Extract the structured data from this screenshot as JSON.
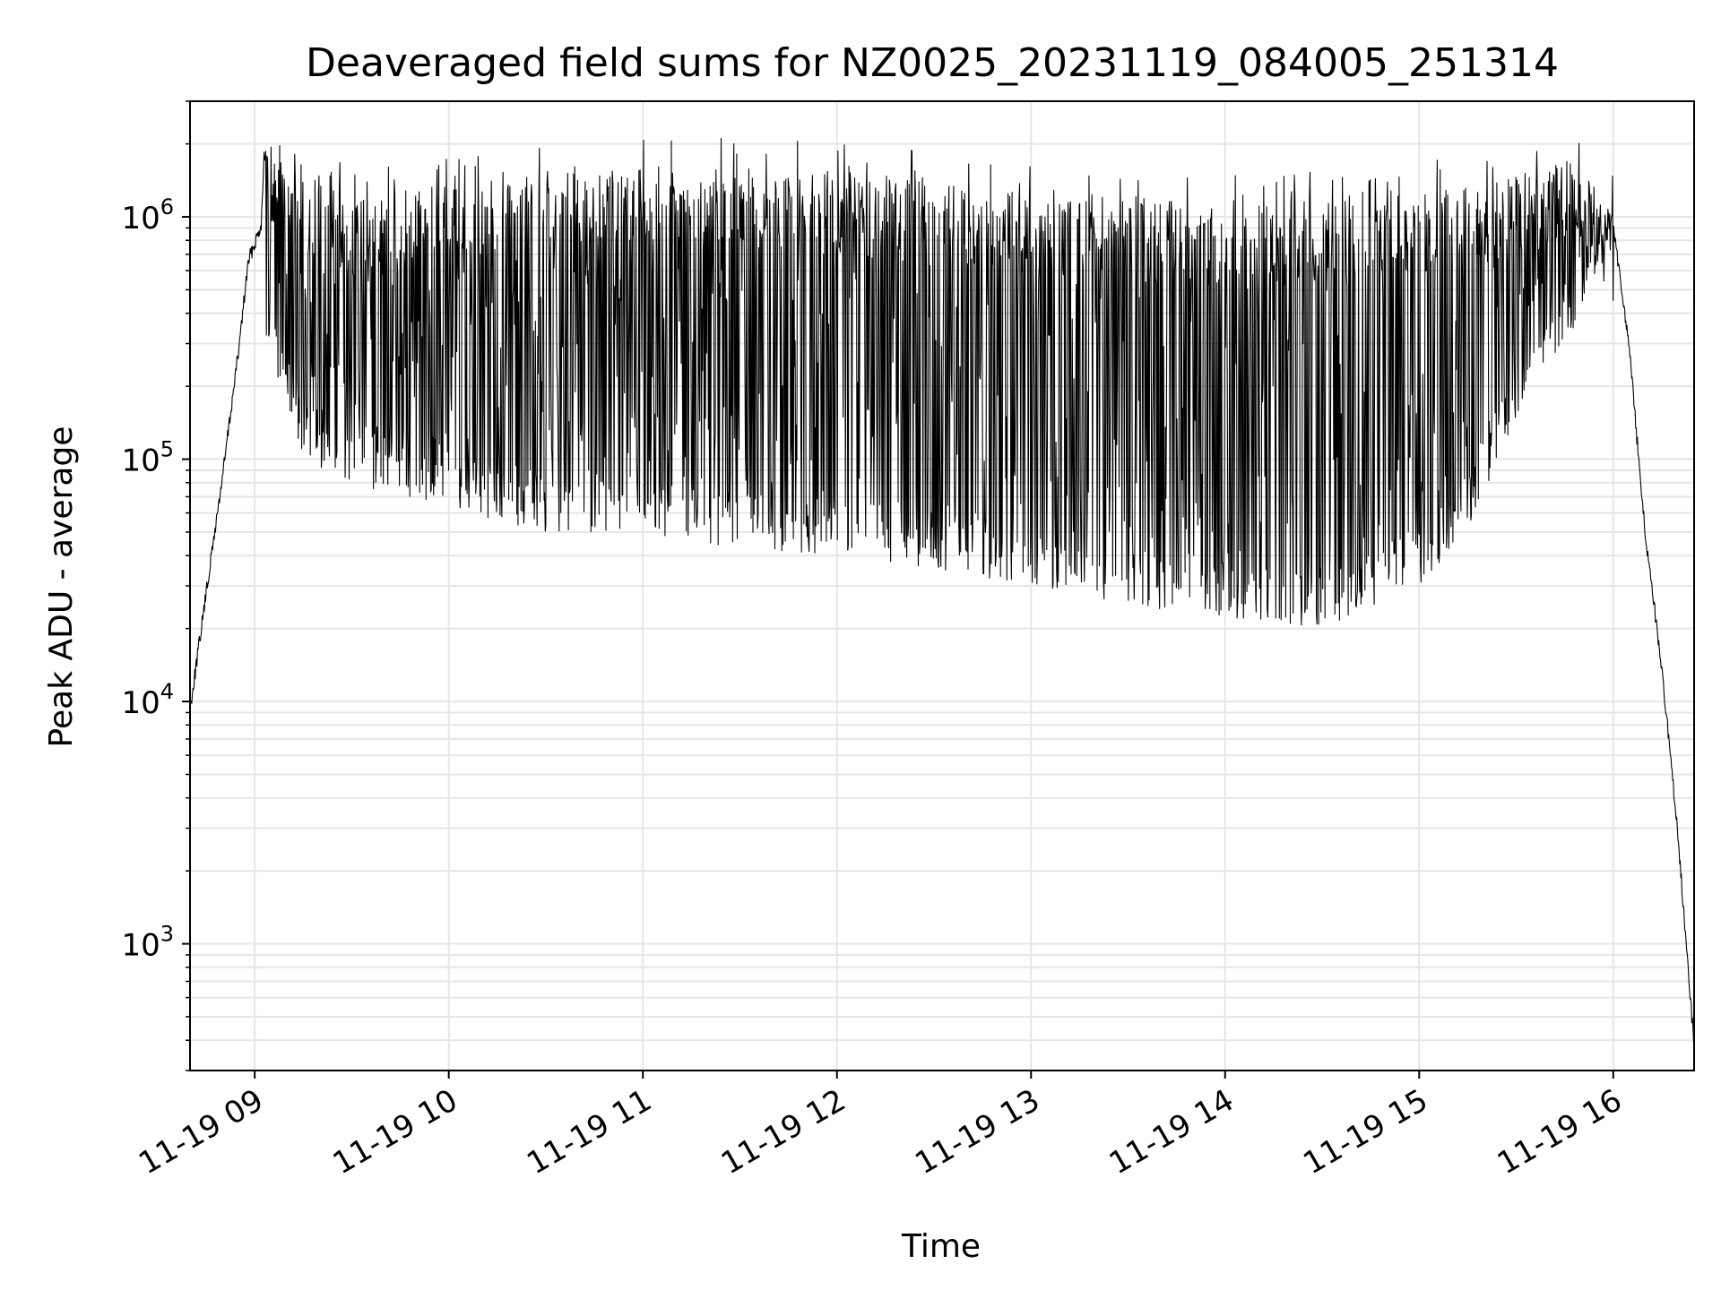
{
  "chart_data": {
    "type": "line",
    "title": "Deaveraged field sums for NZ0025_20231119_084005_251314",
    "xlabel": "Time",
    "ylabel": "Peak ADU - average",
    "yscale": "log",
    "ylim": [
      300,
      3000000
    ],
    "xlim": [
      "2023-11-19 08:40",
      "2023-11-19 16:25"
    ],
    "grid": true,
    "line_color": "#000000",
    "grid_color": "#e6e6e6",
    "x_ticks": [
      {
        "label": "11-19 09",
        "time": "2023-11-19 09:00"
      },
      {
        "label": "11-19 10",
        "time": "2023-11-19 10:00"
      },
      {
        "label": "11-19 11",
        "time": "2023-11-19 11:00"
      },
      {
        "label": "11-19 12",
        "time": "2023-11-19 12:00"
      },
      {
        "label": "11-19 13",
        "time": "2023-11-19 13:00"
      },
      {
        "label": "11-19 14",
        "time": "2023-11-19 14:00"
      },
      {
        "label": "11-19 15",
        "time": "2023-11-19 15:00"
      },
      {
        "label": "11-19 16",
        "time": "2023-11-19 16:00"
      }
    ],
    "y_ticks": [
      {
        "label_base": "10",
        "label_exp": "3",
        "value": 1000
      },
      {
        "label_base": "10",
        "label_exp": "4",
        "value": 10000
      },
      {
        "label_base": "10",
        "label_exp": "5",
        "value": 100000
      },
      {
        "label_base": "10",
        "label_exp": "6",
        "value": 1000000
      }
    ],
    "series": [
      {
        "upper_envelope": [
          [
            "2023-11-19 08:40",
            10000
          ],
          [
            "2023-11-19 08:45",
            30000
          ],
          [
            "2023-11-19 08:50",
            90000
          ],
          [
            "2023-11-19 08:55",
            300000
          ],
          [
            "2023-11-19 08:58",
            700000
          ],
          [
            "2023-11-19 09:02",
            1000000
          ],
          [
            "2023-11-19 09:03",
            2100000
          ],
          [
            "2023-11-19 09:30",
            1200000
          ],
          [
            "2023-11-19 10:00",
            1400000
          ],
          [
            "2023-11-19 10:30",
            1500000
          ],
          [
            "2023-11-19 11:00",
            1600000
          ],
          [
            "2023-11-19 11:30",
            1650000
          ],
          [
            "2023-11-19 12:00",
            1550000
          ],
          [
            "2023-11-19 12:30",
            1400000
          ],
          [
            "2023-11-19 13:00",
            1300000
          ],
          [
            "2023-11-19 13:30",
            1200000
          ],
          [
            "2023-11-19 14:00",
            1150000
          ],
          [
            "2023-11-19 14:30",
            1200000
          ],
          [
            "2023-11-19 15:00",
            1300000
          ],
          [
            "2023-11-19 15:30",
            1500000
          ],
          [
            "2023-11-19 15:50",
            1800000
          ],
          [
            "2023-11-19 16:00",
            1000000
          ],
          [
            "2023-11-19 16:05",
            300000
          ],
          [
            "2023-11-19 16:10",
            50000
          ],
          [
            "2023-11-19 16:15",
            15000
          ],
          [
            "2023-11-19 16:20",
            3000
          ],
          [
            "2023-11-19 16:25",
            400
          ]
        ],
        "lower_envelope": [
          [
            "2023-11-19 09:03",
            300000
          ],
          [
            "2023-11-19 09:15",
            100000
          ],
          [
            "2023-11-19 09:30",
            80000
          ],
          [
            "2023-11-19 10:00",
            60000
          ],
          [
            "2023-11-19 10:30",
            50000
          ],
          [
            "2023-11-19 11:00",
            50000
          ],
          [
            "2023-11-19 11:30",
            40000
          ],
          [
            "2023-11-19 12:00",
            40000
          ],
          [
            "2023-11-19 12:30",
            35000
          ],
          [
            "2023-11-19 13:00",
            30000
          ],
          [
            "2023-11-19 13:30",
            25000
          ],
          [
            "2023-11-19 14:00",
            22000
          ],
          [
            "2023-11-19 14:30",
            20000
          ],
          [
            "2023-11-19 15:00",
            30000
          ],
          [
            "2023-11-19 15:15",
            50000
          ],
          [
            "2023-11-19 15:30",
            150000
          ],
          [
            "2023-11-19 15:45",
            300000
          ],
          [
            "2023-11-19 15:55",
            500000
          ],
          [
            "2023-11-19 16:00",
            1000000
          ]
        ]
      }
    ]
  }
}
